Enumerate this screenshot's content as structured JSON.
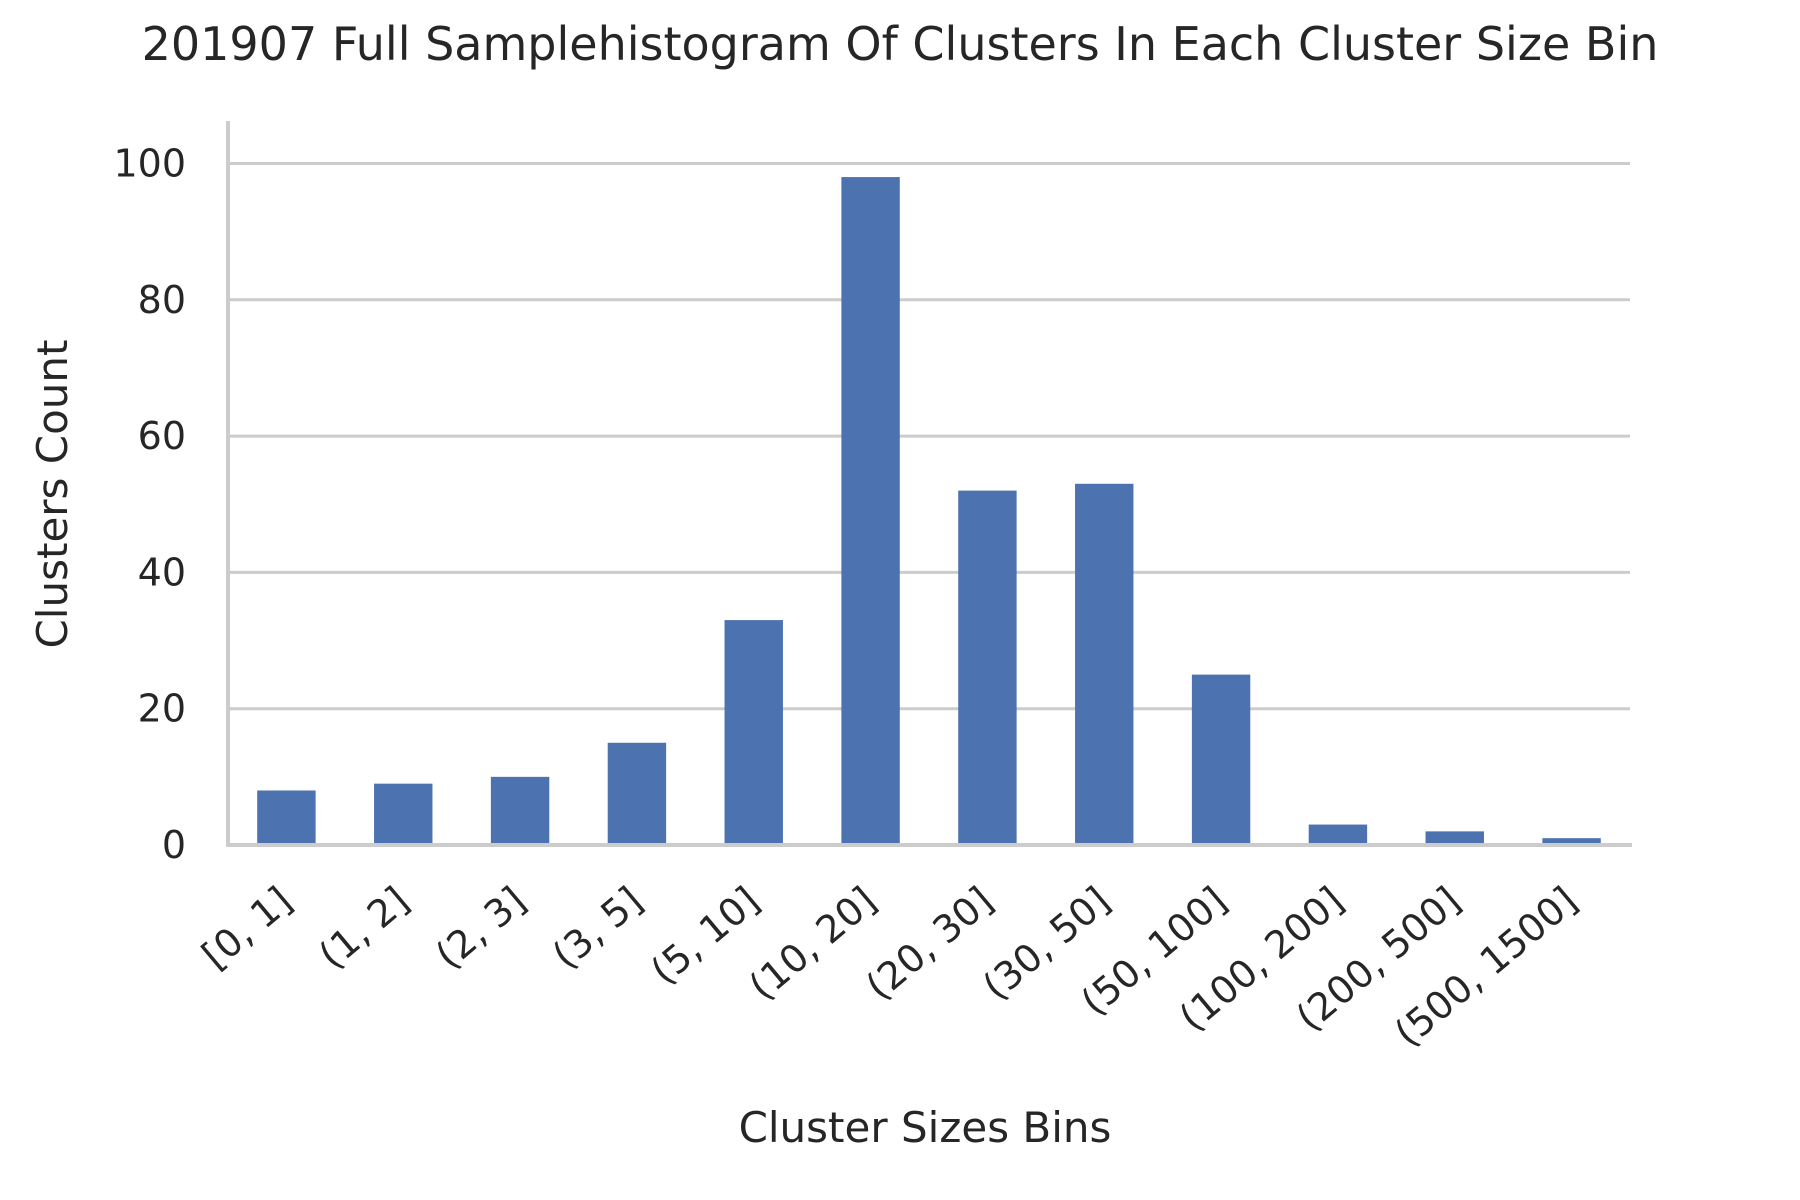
{
  "chart_data": {
    "type": "bar",
    "title": "201907 Full Samplehistogram Of Clusters In Each Cluster Size Bin",
    "xlabel": "Cluster Sizes Bins",
    "ylabel": "Clusters Count",
    "categories": [
      "[0, 1]",
      "(1, 2]",
      "(2, 3]",
      "(3, 5]",
      "(5, 10]",
      "(10, 20]",
      "(20, 30]",
      "(30, 50]",
      "(50, 100]",
      "(100, 200]",
      "(200, 500]",
      "(500, 1500]"
    ],
    "values": [
      8,
      9,
      10,
      15,
      33,
      98,
      52,
      53,
      25,
      3,
      2,
      1
    ],
    "ylim": [
      0,
      103
    ],
    "yticks": [
      0,
      20,
      40,
      60,
      80,
      100
    ],
    "grid": true,
    "bar_color": "#4c72b0",
    "grid_color": "#cccccc",
    "axis_color": "#cccccc",
    "text_color": "#262626"
  }
}
